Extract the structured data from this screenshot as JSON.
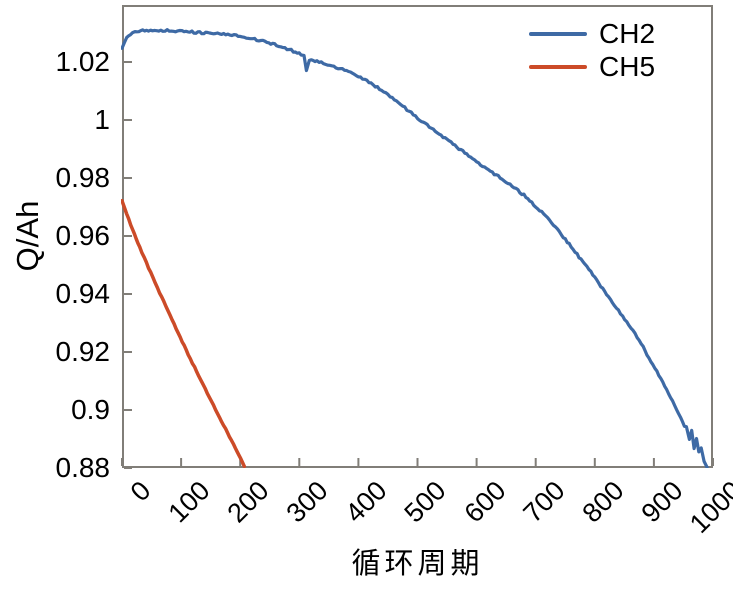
{
  "chart_data": {
    "type": "line",
    "title": "",
    "xlabel": "循环周期",
    "ylabel": "Q/Ah",
    "xlim": [
      0,
      1000
    ],
    "ylim": [
      0.88,
      1.04
    ],
    "grid": false,
    "legend_position": "top-right-inside",
    "axis_color": "#817e78",
    "text_color": "#000000",
    "background_color": "#ffffff",
    "x_ticks": [
      {
        "v": 0,
        "label": "0"
      },
      {
        "v": 100,
        "label": "100"
      },
      {
        "v": 200,
        "label": "200"
      },
      {
        "v": 300,
        "label": "300"
      },
      {
        "v": 400,
        "label": "400"
      },
      {
        "v": 500,
        "label": "500"
      },
      {
        "v": 600,
        "label": "600"
      },
      {
        "v": 700,
        "label": "700"
      },
      {
        "v": 800,
        "label": "800"
      },
      {
        "v": 900,
        "label": "900"
      },
      {
        "v": 1000,
        "label": "1000"
      }
    ],
    "y_ticks": [
      {
        "v": 1.02,
        "label": "1.02"
      },
      {
        "v": 1.0,
        "label": "1"
      },
      {
        "v": 0.98,
        "label": "0.98"
      },
      {
        "v": 0.96,
        "label": "0.96"
      },
      {
        "v": 0.94,
        "label": "0.94"
      },
      {
        "v": 0.92,
        "label": "0.92"
      },
      {
        "v": 0.9,
        "label": "0.9"
      },
      {
        "v": 0.88,
        "label": "0.88"
      }
    ],
    "series": [
      {
        "name": "CH2",
        "color": "#3e6aa5",
        "points": [
          [
            0,
            1.0245
          ],
          [
            4,
            1.0268
          ],
          [
            8,
            1.0283
          ],
          [
            14,
            1.0295
          ],
          [
            22,
            1.0303
          ],
          [
            35,
            1.0308
          ],
          [
            55,
            1.0311
          ],
          [
            80,
            1.0308
          ],
          [
            105,
            1.0305
          ],
          [
            135,
            1.0301
          ],
          [
            165,
            1.0296
          ],
          [
            200,
            1.0289
          ],
          [
            235,
            1.0274
          ],
          [
            265,
            1.0256
          ],
          [
            290,
            1.0237
          ],
          [
            303,
            1.0226
          ],
          [
            308,
            1.0221
          ],
          [
            312,
            1.0172
          ],
          [
            317,
            1.0206
          ],
          [
            330,
            1.0202
          ],
          [
            355,
            1.0188
          ],
          [
            380,
            1.0168
          ],
          [
            400,
            1.0151
          ],
          [
            425,
            1.0122
          ],
          [
            450,
            1.0089
          ],
          [
            475,
            1.0048
          ],
          [
            500,
            1.0006
          ],
          [
            530,
            0.9961
          ],
          [
            560,
            0.9917
          ],
          [
            600,
            0.9856
          ],
          [
            640,
            0.9801
          ],
          [
            680,
            0.9741
          ],
          [
            720,
            0.9663
          ],
          [
            760,
            0.9563
          ],
          [
            800,
            0.9457
          ],
          [
            840,
            0.9342
          ],
          [
            875,
            0.9242
          ],
          [
            905,
            0.9131
          ],
          [
            925,
            0.9056
          ],
          [
            945,
            0.8975
          ],
          [
            955,
            0.8932
          ],
          [
            960,
            0.8908
          ],
          [
            964,
            0.8934
          ],
          [
            968,
            0.8868
          ],
          [
            972,
            0.8898
          ],
          [
            976,
            0.8846
          ],
          [
            980,
            0.8868
          ],
          [
            985,
            0.882
          ],
          [
            990,
            0.8802
          ]
        ]
      },
      {
        "name": "CH5",
        "color": "#cc4b28",
        "points": [
          [
            0,
            0.972
          ],
          [
            8,
            0.9676
          ],
          [
            18,
            0.9621
          ],
          [
            30,
            0.9561
          ],
          [
            45,
            0.949
          ],
          [
            60,
            0.9421
          ],
          [
            78,
            0.9341
          ],
          [
            95,
            0.9266
          ],
          [
            112,
            0.9192
          ],
          [
            130,
            0.9117
          ],
          [
            148,
            0.9043
          ],
          [
            165,
            0.8975
          ],
          [
            182,
            0.8908
          ],
          [
            195,
            0.8857
          ],
          [
            207,
            0.8806
          ]
        ]
      }
    ]
  }
}
